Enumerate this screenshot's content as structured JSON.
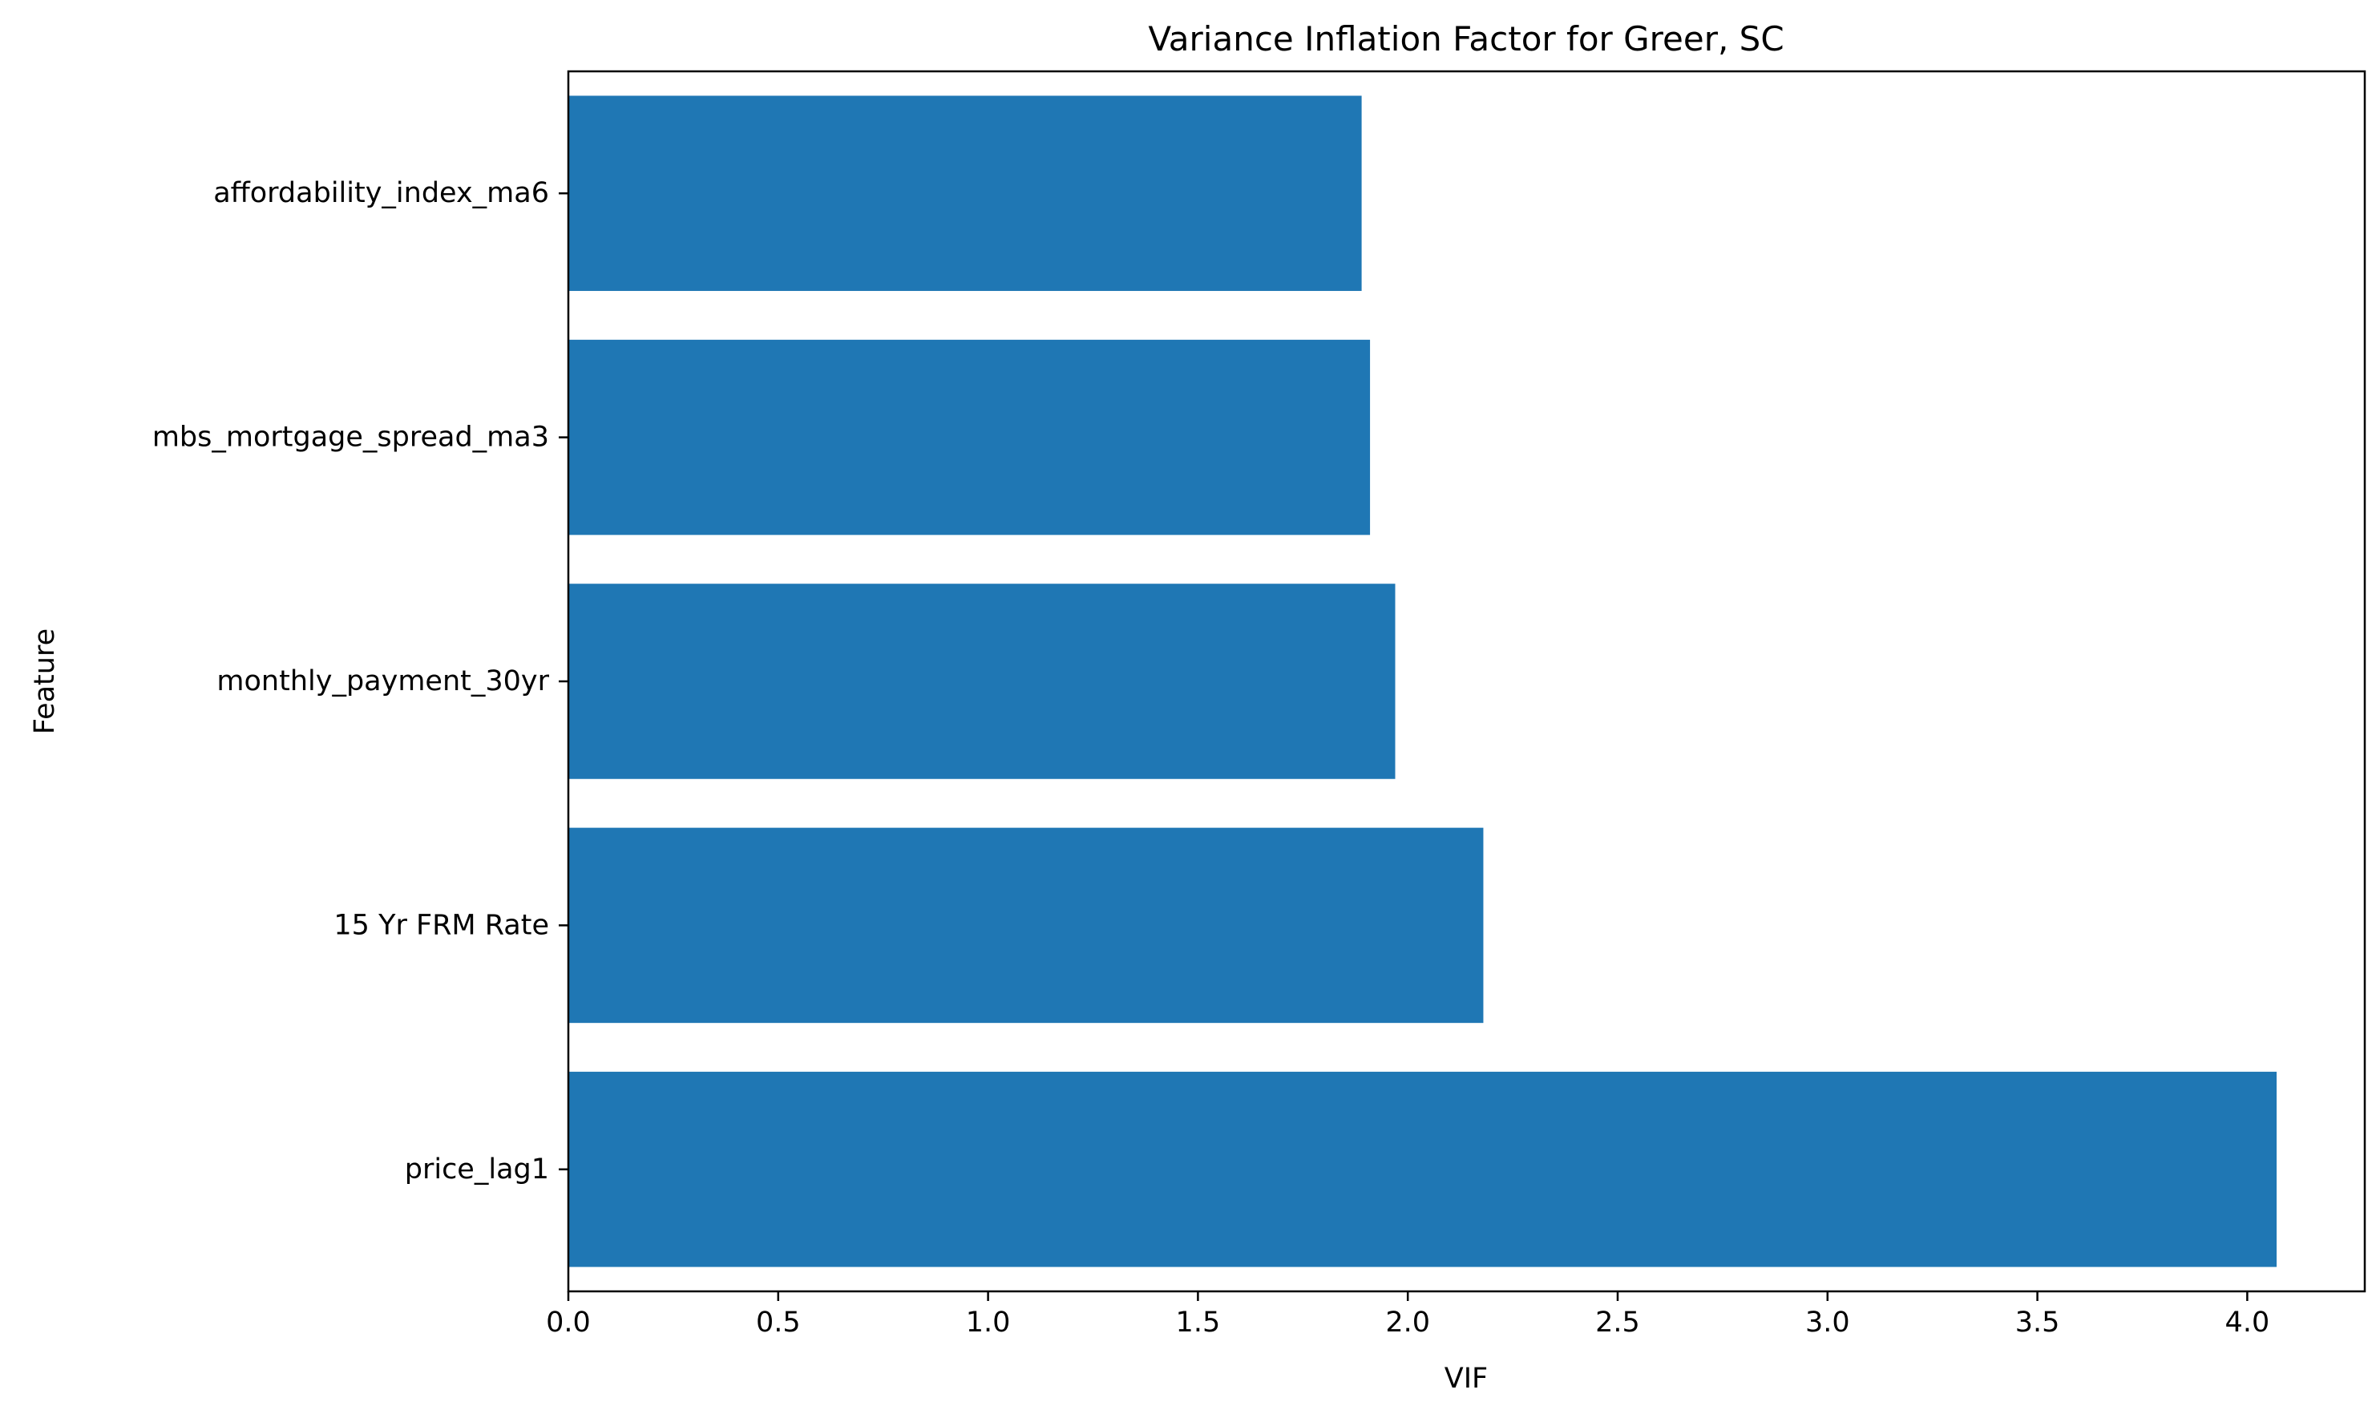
{
  "chart_data": {
    "type": "bar",
    "orientation": "horizontal",
    "title": "Variance Inflation Factor for Greer, SC",
    "xlabel": "VIF",
    "ylabel": "Feature",
    "categories": [
      "price_lag1",
      "15 Yr FRM Rate",
      "monthly_payment_30yr",
      "mbs_mortgage_spread_ma3",
      "affordability_index_ma6"
    ],
    "values": [
      4.07,
      2.18,
      1.97,
      1.91,
      1.89
    ],
    "xlim": [
      0,
      4.28
    ],
    "xticks": [
      0.0,
      0.5,
      1.0,
      1.5,
      2.0,
      2.5,
      3.0,
      3.5,
      4.0
    ],
    "xtick_labels": [
      "0.0",
      "0.5",
      "1.0",
      "1.5",
      "2.0",
      "2.5",
      "3.0",
      "3.5",
      "4.0"
    ],
    "grid": false,
    "bar_color": "#1f77b4"
  }
}
